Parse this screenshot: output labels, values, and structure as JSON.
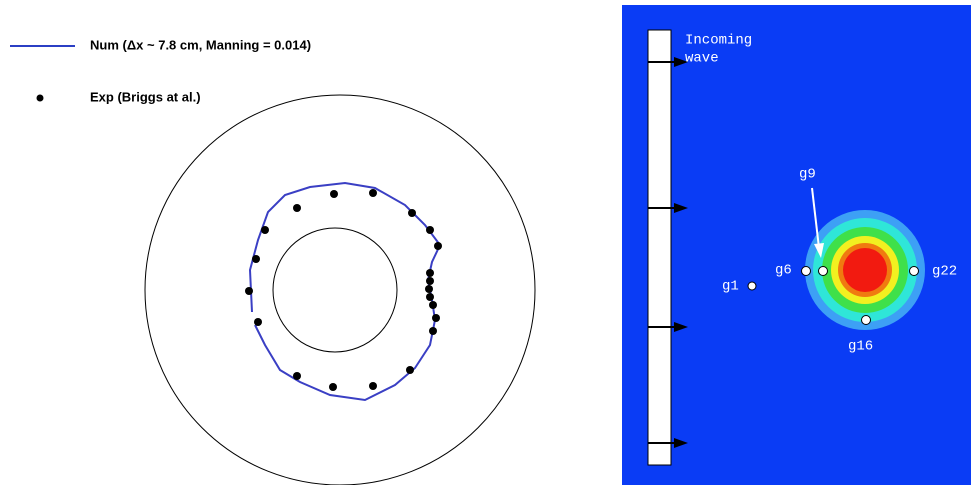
{
  "legend": {
    "num": "Num (Δx ~ 7.8 cm, Manning = 0.014)",
    "exp": "Exp (Briggs at al.)"
  },
  "panel": {
    "caption_line1": "Incoming",
    "caption_line2": "wave",
    "gauges": {
      "g1": "g1",
      "g6": "g6",
      "g9": "g9",
      "g22": "g22",
      "g16": "g16"
    }
  }
}
